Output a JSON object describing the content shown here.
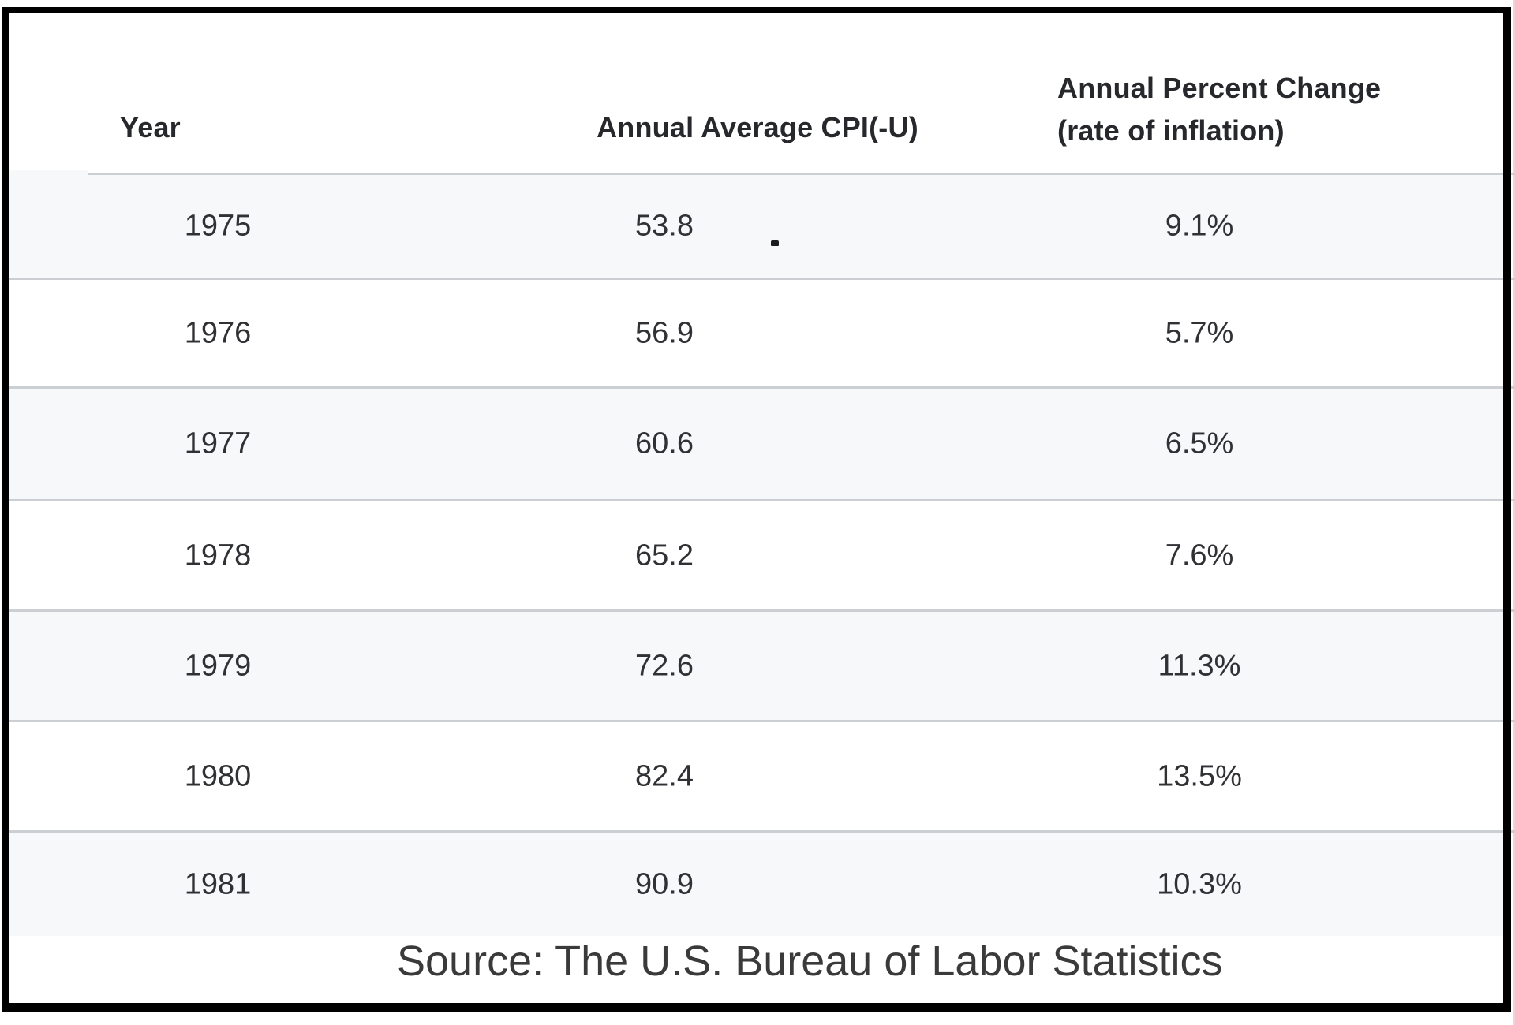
{
  "table": {
    "header": {
      "year": "Year",
      "cpi": "Annual Average CPI(-U)",
      "pct_line1": "Annual Percent Change",
      "pct_line2": "(rate of inflation)"
    },
    "rows": [
      {
        "year": "1975",
        "cpi": "53.8",
        "pct": "9.1%"
      },
      {
        "year": "1976",
        "cpi": "56.9",
        "pct": "5.7%"
      },
      {
        "year": "1977",
        "cpi": "60.6",
        "pct": "6.5%"
      },
      {
        "year": "1978",
        "cpi": "65.2",
        "pct": "7.6%"
      },
      {
        "year": "1979",
        "cpi": "72.6",
        "pct": "11.3%"
      },
      {
        "year": "1980",
        "cpi": "82.4",
        "pct": "13.5%"
      },
      {
        "year": "1981",
        "cpi": "90.9",
        "pct": "10.3%"
      }
    ],
    "source": "Source: The U.S. Bureau of Labor Statistics"
  },
  "colors": {
    "frame": "#000000",
    "stripe": "#f7f8fa",
    "divider": "#cbced3",
    "header_text": "#26282c",
    "body_text": "#2f3134",
    "source_text": "#3a3a3a"
  },
  "chart_data": {
    "type": "table",
    "title": "",
    "columns": [
      "Year",
      "Annual Average CPI(-U)",
      "Annual Percent Change (rate of inflation)"
    ],
    "categories": [
      "1975",
      "1976",
      "1977",
      "1978",
      "1979",
      "1980",
      "1981"
    ],
    "series": [
      {
        "name": "Annual Average CPI(-U)",
        "values": [
          53.8,
          56.9,
          60.6,
          65.2,
          72.6,
          82.4,
          90.9
        ]
      },
      {
        "name": "Annual Percent Change (rate of inflation)",
        "values": [
          "9.1%",
          "5.7%",
          "6.5%",
          "7.6%",
          "11.3%",
          "13.5%",
          "10.3%"
        ]
      }
    ],
    "source": "Source: The U.S. Bureau of Labor Statistics",
    "layout_hints": {
      "striped_rows": true,
      "grid": "horizontal-dividers",
      "frame": "black-border"
    }
  }
}
